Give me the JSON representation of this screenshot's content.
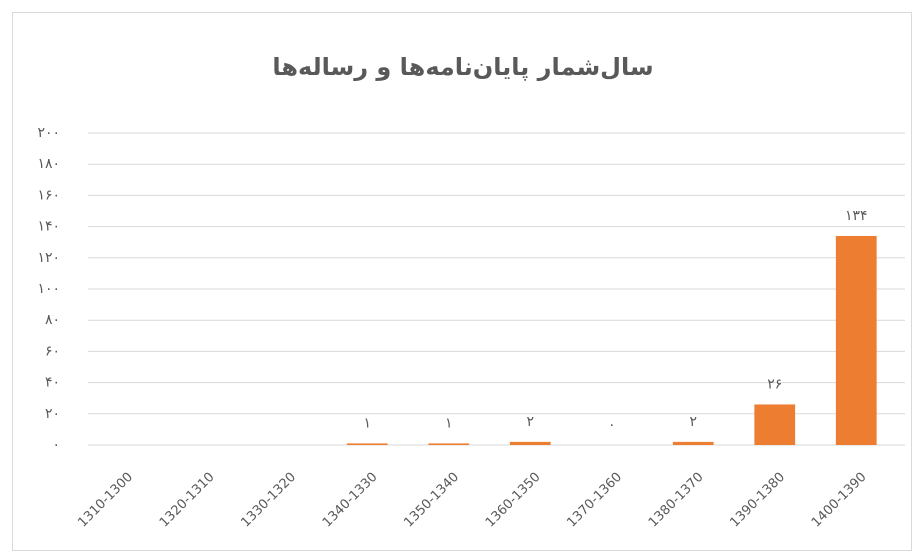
{
  "chart_data": {
    "type": "bar",
    "title": "سال‌شمار پایان‌نامه‌ها و رساله‌ها",
    "categories": [
      "1310-1300",
      "1320-1310",
      "1330-1320",
      "1340-1330",
      "1350-1340",
      "1360-1350",
      "1370-1360",
      "1380-1370",
      "1390-1380",
      "1400-1390"
    ],
    "values": [
      null,
      null,
      null,
      1,
      1,
      2,
      0,
      2,
      26,
      134
    ],
    "value_labels": [
      null,
      null,
      null,
      "۱",
      "۱",
      "۲",
      "۰",
      "۲",
      "۲۶",
      "۱۳۴"
    ],
    "color": "#ed7d31",
    "ylim": [
      0,
      200
    ],
    "yticks": [
      {
        "value": 0,
        "label": "۰"
      },
      {
        "value": 20,
        "label": "۲۰"
      },
      {
        "value": 40,
        "label": "۴۰"
      },
      {
        "value": 60,
        "label": "۶۰"
      },
      {
        "value": 80,
        "label": "۸۰"
      },
      {
        "value": 100,
        "label": "۱۰۰"
      },
      {
        "value": 120,
        "label": "۱۲۰"
      },
      {
        "value": 140,
        "label": "۱۴۰"
      },
      {
        "value": 160,
        "label": "۱۶۰"
      },
      {
        "value": 180,
        "label": "۱۸۰"
      },
      {
        "value": 200,
        "label": "۲۰۰"
      }
    ],
    "grid": true
  }
}
